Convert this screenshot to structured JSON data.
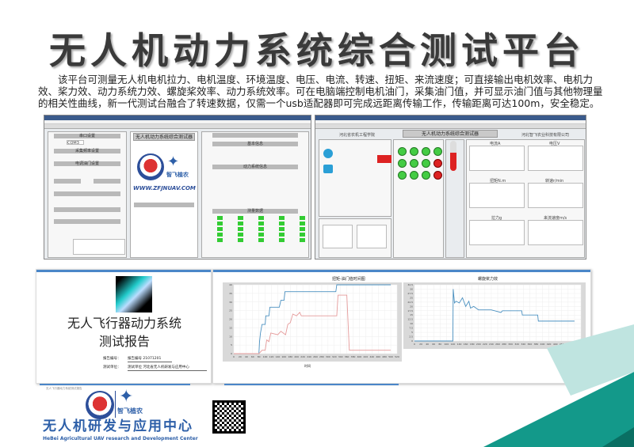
{
  "title": "无人机动力系统综合测试平台",
  "description": "该平台可测量无人机电机拉力、电机温度、环境温度、电压、电流、转速、扭矩、来流速度；可直接输出电机效率、电机力效、桨力效、动力系统力效、螺旋桨效率、动力系统效率。可在电脑端控制电机油门，采集油门值，并可显示油门值与其他物理量的相关性曲线，新一代测试台融合了转速数据，仅需一个usb适配器即可完成远距离传输工作，传输距离可达100m，安全稳定。",
  "screen1": {
    "app_title": "无人机动力系统综合测试器",
    "url": "WWW.ZFJNUAV.COM",
    "brand": "智飞植农",
    "port": "COM3",
    "sections": [
      "串口设置",
      "采集频率设置",
      "电调油门设置",
      "基本信息",
      "动力系统信息",
      "测量数据"
    ]
  },
  "screen2": {
    "app_title": "无人机动力系统综合测试器",
    "left_org": "河北省农机工程学院",
    "right_org": "河北智飞农业科技有限公司",
    "charts": [
      "电流A",
      "电压V",
      "扭矩N.m",
      "转速r/min",
      "拉力g",
      "来流速度m/s"
    ]
  },
  "report": {
    "title_line1": "无人飞行器动力系统",
    "title_line2": "测试报告",
    "number_label": "报告编号：",
    "number_value": "报告编号 21071201",
    "unit_label": "测试单位：",
    "unit_value": "测试单位  河北省无人机研发与应用中心",
    "footer": "无人飞行器动力系统测试报告"
  },
  "chart1": {
    "title": "扭矩-油门值时间图",
    "xlabel": "时间",
    "xticks": [
      0,
      20,
      40,
      60,
      80,
      100,
      120,
      140,
      160,
      180,
      200,
      220,
      240,
      260,
      280,
      300,
      320,
      340,
      360,
      380,
      400,
      420,
      440,
      460,
      480,
      500,
      520
    ],
    "yticks": [
      0,
      5,
      10,
      15,
      20,
      25,
      30,
      35,
      40
    ],
    "blue": [
      [
        0,
        0
      ],
      [
        80,
        0
      ],
      [
        82,
        7
      ],
      [
        85,
        12
      ],
      [
        90,
        17
      ],
      [
        100,
        17
      ],
      [
        102,
        22
      ],
      [
        112,
        22
      ],
      [
        115,
        27
      ],
      [
        145,
        27
      ],
      [
        150,
        31
      ],
      [
        160,
        31
      ],
      [
        163,
        36
      ],
      [
        325,
        36
      ],
      [
        328,
        40
      ],
      [
        500,
        40
      ]
    ],
    "red": [
      [
        0,
        0
      ],
      [
        80,
        0
      ],
      [
        90,
        2
      ],
      [
        100,
        2
      ],
      [
        105,
        8
      ],
      [
        112,
        7
      ],
      [
        118,
        12
      ],
      [
        140,
        11
      ],
      [
        150,
        13
      ],
      [
        165,
        11
      ],
      [
        172,
        17
      ],
      [
        180,
        18
      ],
      [
        188,
        23
      ],
      [
        200,
        22
      ],
      [
        210,
        24
      ],
      [
        215,
        22
      ],
      [
        328,
        22
      ],
      [
        332,
        34
      ],
      [
        360,
        34
      ],
      [
        368,
        2
      ],
      [
        500,
        2
      ]
    ]
  },
  "chart2": {
    "title": "螺旋桨力效",
    "xticks": [
      0,
      20,
      40,
      60,
      80,
      100,
      120,
      140,
      160,
      180,
      200,
      220,
      240,
      260,
      280,
      300,
      320,
      340,
      360,
      380,
      400,
      420,
      440,
      460,
      480,
      500,
      520
    ],
    "yticks": [
      0,
      2.5,
      5,
      7.5,
      10,
      12.5,
      15,
      17.5,
      20,
      22.5,
      25,
      27.5,
      30,
      32.5
    ],
    "line": [
      [
        0,
        0
      ],
      [
        120,
        0
      ],
      [
        121,
        30
      ],
      [
        125,
        22
      ],
      [
        130,
        23
      ],
      [
        140,
        22
      ],
      [
        150,
        25
      ],
      [
        160,
        20
      ],
      [
        170,
        23
      ],
      [
        175,
        19
      ],
      [
        185,
        20
      ],
      [
        200,
        18
      ],
      [
        240,
        18
      ],
      [
        260,
        17
      ],
      [
        270,
        16.5
      ],
      [
        275,
        17.5
      ],
      [
        335,
        17.5
      ],
      [
        337,
        15
      ],
      [
        385,
        15
      ],
      [
        387,
        11.5
      ],
      [
        500,
        11.5
      ]
    ]
  },
  "footer_org_cn": "无人机研发与应用中心",
  "footer_org_en": "HeBei Agricultural UAV research and Development Center",
  "brand": "智飞植农",
  "colors": {
    "accent_blue": "#4a86c8",
    "teal": "#13998a",
    "logo_blue": "#2d5fa8",
    "logo_red": "#d32f2f"
  }
}
